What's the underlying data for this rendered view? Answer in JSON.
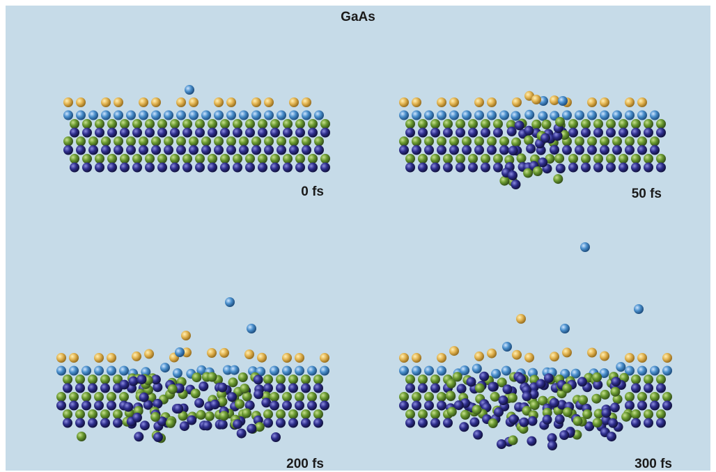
{
  "title": "GaAs",
  "panels": [
    {
      "label": "0 fs"
    },
    {
      "label": "50 fs"
    },
    {
      "label": "200 fs"
    },
    {
      "label": "300 fs"
    }
  ]
}
